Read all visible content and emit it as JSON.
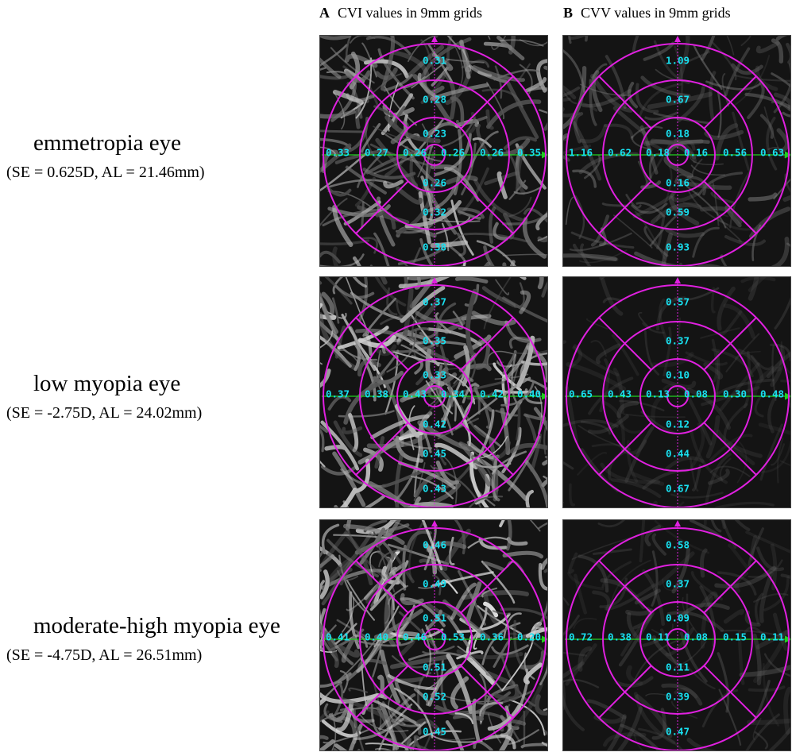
{
  "columns": [
    {
      "letter": "A",
      "title": "CVI values in 9mm grids"
    },
    {
      "letter": "B",
      "title": "CVV values in 9mm grids"
    }
  ],
  "rows": [
    {
      "name": "emmetropia eye",
      "params": "(SE = 0.625D, AL = 21.46mm)",
      "cvi": {
        "up": [
          "0.31",
          "0.28",
          "0.23"
        ],
        "down": [
          "0.26",
          "0.32",
          "0.38"
        ],
        "left": [
          "0.33",
          "0.27",
          "0.26"
        ],
        "right": [
          "0.26",
          "0.26",
          "0.35"
        ]
      },
      "cvv": {
        "up": [
          "1.09",
          "0.67",
          "0.18"
        ],
        "down": [
          "0.16",
          "0.59",
          "0.93"
        ],
        "left": [
          "1.16",
          "0.62",
          "0.18"
        ],
        "right": [
          "0.16",
          "0.56",
          "0.63"
        ]
      }
    },
    {
      "name": "low myopia eye",
      "params": "(SE = -2.75D, AL = 24.02mm)",
      "cvi": {
        "up": [
          "0.37",
          "0.35",
          "0.33"
        ],
        "down": [
          "0.42",
          "0.45",
          "0.43"
        ],
        "left": [
          "0.37",
          "0.38",
          "0.43"
        ],
        "right": [
          "0.34",
          "0.42",
          "0.40"
        ]
      },
      "cvv": {
        "up": [
          "0.57",
          "0.37",
          "0.10"
        ],
        "down": [
          "0.12",
          "0.44",
          "0.67"
        ],
        "left": [
          "0.65",
          "0.43",
          "0.13"
        ],
        "right": [
          "0.08",
          "0.30",
          "0.48"
        ]
      }
    },
    {
      "name": "moderate-high myopia eye",
      "params": "(SE = -4.75D, AL = 26.51mm)",
      "cvi": {
        "up": [
          "0.46",
          "0.49",
          "0.51"
        ],
        "down": [
          "0.51",
          "0.52",
          "0.45"
        ],
        "left": [
          "0.41",
          "0.40",
          "0.46"
        ],
        "right": [
          "0.53",
          "0.36",
          "0.20"
        ]
      },
      "cvv": {
        "up": [
          "0.58",
          "0.37",
          "0.09"
        ],
        "down": [
          "0.11",
          "0.39",
          "0.47"
        ],
        "left": [
          "0.72",
          "0.38",
          "0.11"
        ],
        "right": [
          "0.08",
          "0.15",
          "0.11"
        ]
      }
    }
  ],
  "colors": {
    "grid": "#e020e0",
    "axis_vertical": "#e020e0",
    "axis_horizontal": "#20d020",
    "values": "#18e0f0"
  }
}
